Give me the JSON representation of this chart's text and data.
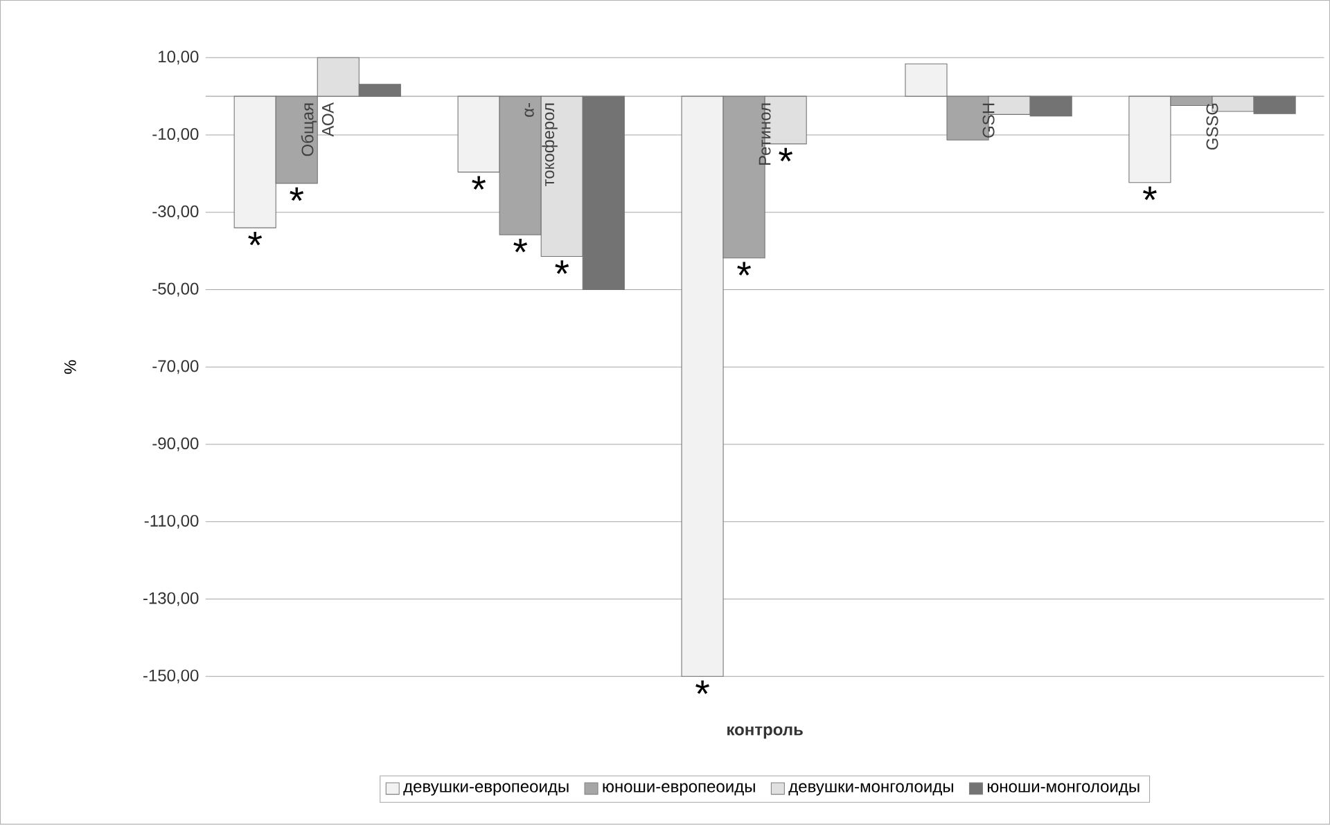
{
  "chart_data": {
    "type": "bar",
    "xlabel": "контроль",
    "ylabel": "%",
    "categories": [
      "Общая АОА",
      "α-токоферол",
      "Ретинол",
      "GSH",
      "GSSG"
    ],
    "series": [
      {
        "name": "девушки-европеоиды",
        "color": "#f2f2f2",
        "values": [
          -34,
          -19.6,
          -150,
          8.4,
          -22.3
        ],
        "value_labels": [
          "*",
          "*",
          "*",
          null,
          "*"
        ]
      },
      {
        "name": "юноши-европеоиды",
        "color": "#a6a6a6",
        "values": [
          -22.5,
          -35.8,
          -41.8,
          -11.3,
          -2.4
        ],
        "value_labels": [
          "*",
          "*",
          "*",
          null,
          null
        ]
      },
      {
        "name": "девушки-монголоиды",
        "color": "#e0e0e0",
        "values": [
          10,
          -41.4,
          -12.3,
          -4.7,
          -3.9
        ],
        "value_labels": [
          null,
          "*",
          "*",
          null,
          null
        ]
      },
      {
        "name": "юноши-монголоиды",
        "color": "#737373",
        "values": [
          3.1,
          -50,
          null,
          -5.1,
          -4.5
        ]
      }
    ],
    "ylim": [
      -150,
      10
    ],
    "yticks": [
      {
        "value": 10,
        "label": "10,00"
      },
      {
        "value": -10,
        "label": "-10,00"
      },
      {
        "value": -30,
        "label": "-30,00"
      },
      {
        "value": -50,
        "label": "-50,00"
      },
      {
        "value": -70,
        "label": "-70,00"
      },
      {
        "value": -90,
        "label": "-90,00"
      },
      {
        "value": -110,
        "label": "-110,00"
      },
      {
        "value": -130,
        "label": "-130,00"
      },
      {
        "value": -150,
        "label": "-150,00"
      }
    ],
    "grid": "y",
    "legend": "bottom"
  }
}
